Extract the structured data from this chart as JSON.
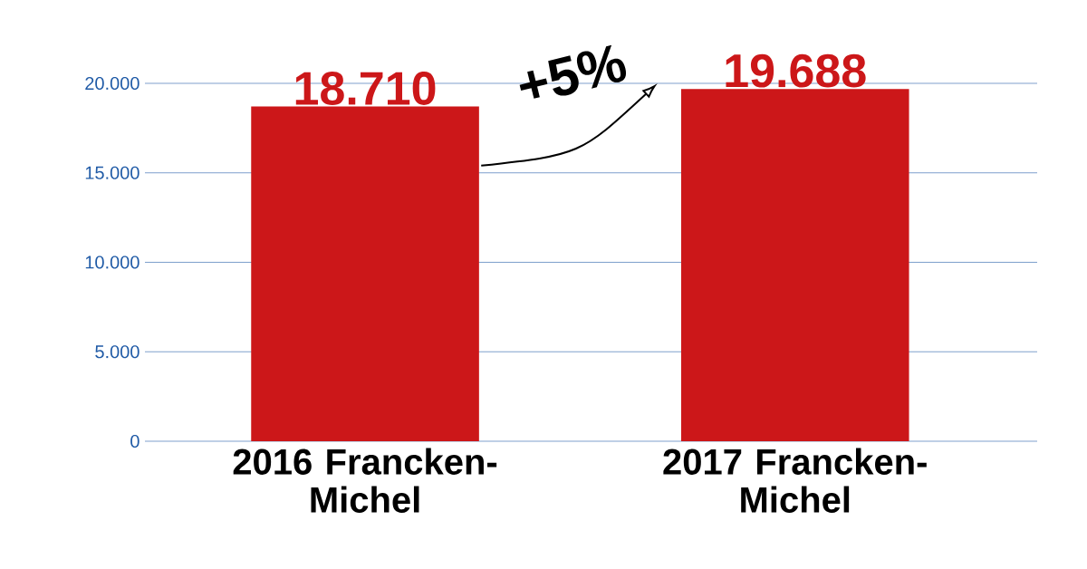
{
  "chart_data": {
    "type": "bar",
    "categories": [
      "2016 Francken-Michel",
      "2017 Francken-Michel"
    ],
    "values": [
      18710,
      19688
    ],
    "value_labels": [
      "18.710",
      "19.688"
    ],
    "color": "#cc1719",
    "ylim": [
      0,
      20000
    ],
    "yticks": [
      {
        "value": 0,
        "label": "0"
      },
      {
        "value": 5000,
        "label": "5.000"
      },
      {
        "value": 10000,
        "label": "10.000"
      },
      {
        "value": 15000,
        "label": "15.000"
      },
      {
        "value": 20000,
        "label": "20.000"
      }
    ],
    "grid": "y",
    "annotations": [
      "+5%"
    ]
  }
}
